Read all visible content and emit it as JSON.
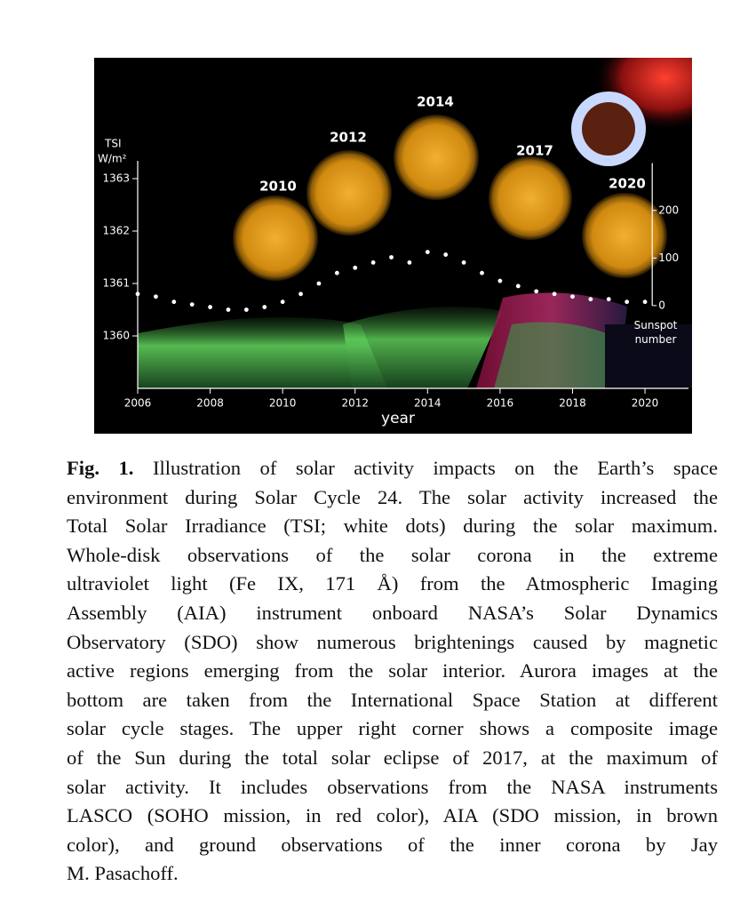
{
  "chart_data": {
    "type": "scatter",
    "y_label": "TSI",
    "y_unit": "W/m²",
    "x_label": "year",
    "y2_label": "Sunspot number",
    "x": [
      2006,
      2006.5,
      2007,
      2007.5,
      2008,
      2008.5,
      2009,
      2009.5,
      2010,
      2010.5,
      2011,
      2011.5,
      2012,
      2012.5,
      2013,
      2013.5,
      2014,
      2014.5,
      2015,
      2015.5,
      2016,
      2016.5,
      2017,
      2017.5,
      2018,
      2018.5,
      2019,
      2019.5,
      2020
    ],
    "series": [
      {
        "color": "#ffffff",
        "values": [
          1360.8,
          1360.75,
          1360.65,
          1360.6,
          1360.55,
          1360.5,
          1360.5,
          1360.55,
          1360.65,
          1360.8,
          1361.0,
          1361.2,
          1361.3,
          1361.4,
          1361.5,
          1361.4,
          1361.6,
          1361.55,
          1361.4,
          1361.2,
          1361.05,
          1360.95,
          1360.85,
          1360.8,
          1360.75,
          1360.7,
          1360.7,
          1360.65,
          1360.65
        ]
      }
    ],
    "xlim": [
      2006,
      2021.2
    ],
    "xticks": [
      2006,
      2008,
      2010,
      2012,
      2014,
      2016,
      2018,
      2020
    ],
    "ylim": [
      1359,
      1363.5
    ],
    "yticks": [
      1360,
      1361,
      1362,
      1363
    ],
    "y2lim": [
      -174,
      322
    ],
    "y2ticks": [
      0,
      100,
      200
    ],
    "sun_labels": [
      "2010",
      "2012",
      "2014",
      "2017",
      "2020"
    ]
  },
  "caption": {
    "label": "Fig. 1.",
    "lines": [
      "Illustration of solar activity impacts on the Earth’s space",
      "environment during Solar Cycle 24. The solar activity increased the",
      "Total Solar Irradiance (TSI; white dots) during the solar maximum.",
      "Whole-disk observations of the solar corona in the extreme",
      "ultraviolet light (Fe IX, 171 Å) from the Atmospheric Imaging",
      "Assembly (AIA) instrument onboard NASA’s Solar Dynamics",
      "Observatory (SDO) show numerous brightenings caused by magnetic",
      "active regions emerging from the solar interior. Aurora images at the",
      "bottom are taken from the International Space Station at different",
      "solar cycle stages. The upper right corner shows a composite image",
      "of the Sun during the total solar eclipse of 2017, at the maximum of",
      "solar activity. It includes observations from the NASA instruments",
      "LASCO (SOHO mission, in red color), AIA (SDO mission, in brown",
      "color), and ground observations of the inner corona by Jay",
      "M. Pasachoff."
    ]
  }
}
